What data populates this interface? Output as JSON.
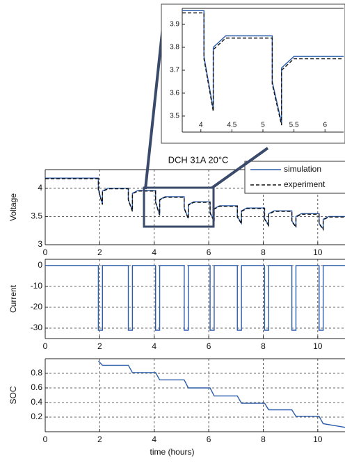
{
  "chart_data": [
    {
      "type": "line",
      "grid": false,
      "xlim": [
        3.7,
        6.3
      ],
      "ylim": [
        3.43,
        3.97
      ],
      "xticks": [
        4,
        4.5,
        5,
        5.5,
        6
      ],
      "yticks": [
        3.5,
        3.6,
        3.7,
        3.8,
        3.9
      ],
      "x": [
        3.7,
        4.05,
        4.05,
        4.2,
        4.2,
        4.4,
        5.15,
        5.15,
        5.3,
        5.3,
        5.5,
        6.3
      ],
      "series": [
        {
          "color": "#2a5caa",
          "linestyle": "solid",
          "values": [
            3.96,
            3.96,
            3.76,
            3.53,
            3.8,
            3.85,
            3.85,
            3.65,
            3.47,
            3.71,
            3.76,
            3.76
          ]
        },
        {
          "color": "#111111",
          "linestyle": "dashed",
          "values": [
            3.95,
            3.95,
            3.75,
            3.52,
            3.79,
            3.84,
            3.84,
            3.64,
            3.46,
            3.7,
            3.75,
            3.75
          ]
        }
      ]
    },
    {
      "type": "line",
      "title": "DCH 31A 20°C",
      "ylabel": "Voltage",
      "grid": true,
      "legend": "upper right",
      "xlim": [
        0,
        11
      ],
      "ylim": [
        3,
        4.33
      ],
      "xticks": [
        0,
        2,
        4,
        6,
        8,
        10
      ],
      "yticks": [
        3,
        3.5,
        4
      ],
      "x": [
        0,
        1.95,
        1.95,
        2.1,
        2.1,
        2.3,
        3.05,
        3.05,
        3.2,
        3.2,
        3.4,
        4.05,
        4.05,
        4.2,
        4.2,
        4.4,
        5.1,
        5.1,
        5.25,
        5.25,
        5.45,
        6.05,
        6.05,
        6.2,
        6.2,
        6.4,
        7.05,
        7.05,
        7.2,
        7.2,
        7.4,
        8.05,
        8.05,
        8.2,
        8.2,
        8.4,
        9.05,
        9.05,
        9.2,
        9.2,
        9.4,
        10.05,
        10.05,
        10.2,
        10.2,
        10.4,
        11
      ],
      "series": [
        {
          "name": "simulation",
          "color": "#2a5caa",
          "linestyle": "solid",
          "values": [
            4.18,
            4.18,
            3.98,
            3.72,
            3.95,
            4.0,
            4.0,
            3.8,
            3.6,
            3.91,
            3.96,
            3.96,
            3.76,
            3.53,
            3.8,
            3.85,
            3.85,
            3.65,
            3.47,
            3.71,
            3.76,
            3.76,
            3.57,
            3.42,
            3.64,
            3.69,
            3.69,
            3.5,
            3.38,
            3.6,
            3.65,
            3.65,
            3.46,
            3.35,
            3.55,
            3.6,
            3.6,
            3.42,
            3.32,
            3.5,
            3.55,
            3.55,
            3.38,
            3.28,
            3.45,
            3.5,
            3.5
          ]
        },
        {
          "name": "experiment",
          "color": "#111111",
          "linestyle": "dashed",
          "values": [
            4.17,
            4.17,
            3.97,
            3.71,
            3.94,
            3.99,
            3.99,
            3.79,
            3.59,
            3.9,
            3.95,
            3.95,
            3.75,
            3.52,
            3.79,
            3.84,
            3.84,
            3.64,
            3.46,
            3.7,
            3.75,
            3.75,
            3.56,
            3.41,
            3.63,
            3.68,
            3.68,
            3.49,
            3.37,
            3.59,
            3.64,
            3.64,
            3.45,
            3.34,
            3.54,
            3.59,
            3.59,
            3.41,
            3.31,
            3.49,
            3.54,
            3.54,
            3.37,
            3.27,
            3.44,
            3.49,
            3.49
          ]
        }
      ]
    },
    {
      "type": "line",
      "ylabel": "Current",
      "grid": true,
      "xlim": [
        0,
        11
      ],
      "ylim": [
        -35,
        3
      ],
      "xticks": [
        0,
        2,
        4,
        6,
        8,
        10
      ],
      "yticks": [
        -30,
        -20,
        -10,
        0
      ],
      "x": [
        0,
        1.95,
        1.95,
        2.1,
        2.1,
        3.05,
        3.05,
        3.2,
        3.2,
        4.05,
        4.05,
        4.2,
        4.2,
        5.1,
        5.1,
        5.25,
        5.25,
        6.05,
        6.05,
        6.2,
        6.2,
        7.05,
        7.05,
        7.2,
        7.2,
        8.05,
        8.05,
        8.2,
        8.2,
        9.05,
        9.05,
        9.2,
        9.2,
        10.05,
        10.05,
        10.2,
        10.2,
        11
      ],
      "series": [
        {
          "color": "#2a5caa",
          "linestyle": "solid",
          "values": [
            0,
            0,
            -31,
            -31,
            0,
            0,
            -31,
            -31,
            0,
            0,
            -31,
            -31,
            0,
            0,
            -31,
            -31,
            0,
            0,
            -31,
            -31,
            0,
            0,
            -31,
            -31,
            0,
            0,
            -31,
            -31,
            0,
            0,
            -31,
            -31,
            0,
            0,
            -31,
            -31,
            0,
            0
          ]
        }
      ]
    },
    {
      "type": "line",
      "ylabel": "SOC",
      "xlabel": "time (hours)",
      "grid": true,
      "xlim": [
        0,
        11
      ],
      "ylim": [
        0,
        1
      ],
      "xticks": [
        0,
        2,
        4,
        6,
        8,
        10
      ],
      "yticks": [
        0.2,
        0.4,
        0.6,
        0.8
      ],
      "x": [
        1.95,
        2.1,
        3.05,
        3.2,
        4.05,
        4.2,
        5.1,
        5.25,
        6.05,
        6.2,
        7.05,
        7.2,
        8.05,
        8.2,
        9.05,
        9.2,
        10.05,
        10.2,
        11
      ],
      "series": [
        {
          "color": "#2a5caa",
          "linestyle": "solid",
          "values": [
            0.97,
            0.91,
            0.91,
            0.81,
            0.81,
            0.71,
            0.71,
            0.6,
            0.6,
            0.49,
            0.49,
            0.39,
            0.39,
            0.3,
            0.3,
            0.21,
            0.21,
            0.11,
            0.06
          ]
        }
      ]
    }
  ]
}
